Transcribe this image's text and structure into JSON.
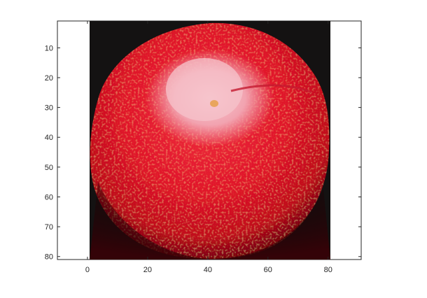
{
  "chart_data": {
    "type": "image",
    "xlim": [
      -10,
      91
    ],
    "ylim": [
      1,
      81
    ],
    "y_direction": "reverse",
    "image_extent": {
      "x": [
        0.5,
        80.5
      ],
      "y": [
        0.5,
        80.5
      ]
    },
    "image_subject": "red apple on dark background",
    "grid": false,
    "x_ticks": [
      0,
      20,
      40,
      60,
      80
    ],
    "y_ticks": [
      10,
      20,
      30,
      40,
      50,
      60,
      70,
      80
    ],
    "x_tick_labels": [
      "0",
      "20",
      "40",
      "60",
      "80"
    ],
    "y_tick_labels": [
      "10",
      "20",
      "30",
      "40",
      "50",
      "60",
      "70",
      "80"
    ]
  },
  "colors": {
    "background": "#000000",
    "apple_red": "#e0142a",
    "apple_dark_red": "#8c0010",
    "highlight_pink": "#f4b6c0",
    "axis": "#262626"
  }
}
